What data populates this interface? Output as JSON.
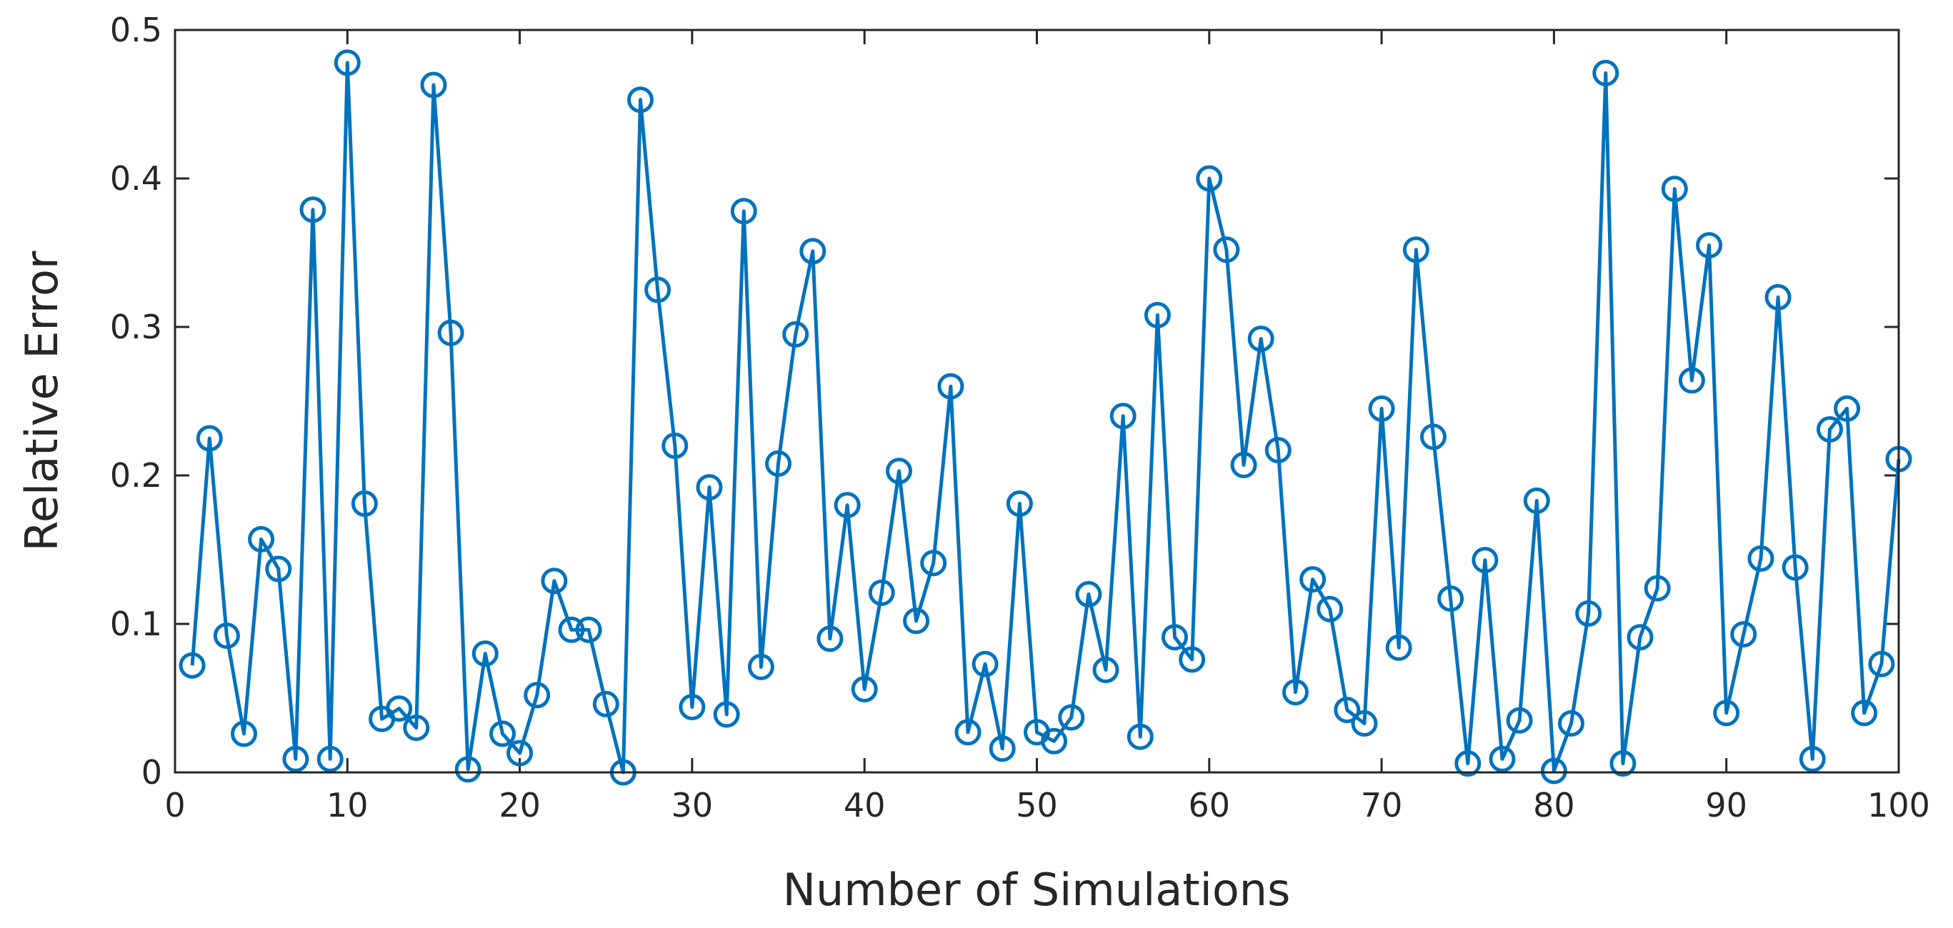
{
  "chart_data": {
    "type": "line",
    "title": "",
    "xlabel": "Number of Simulations",
    "ylabel": "Relative Error",
    "xlim": [
      0,
      100
    ],
    "ylim": [
      0,
      0.5
    ],
    "xticks": [
      0,
      10,
      20,
      30,
      40,
      50,
      60,
      70,
      80,
      90,
      100
    ],
    "xtick_labels": [
      "0",
      "10",
      "20",
      "30",
      "40",
      "50",
      "60",
      "70",
      "80",
      "90",
      "100"
    ],
    "yticks": [
      0,
      0.1,
      0.2,
      0.3,
      0.4,
      0.5
    ],
    "ytick_labels": [
      "0",
      "0.1",
      "0.2",
      "0.3",
      "0.4",
      "0.5"
    ],
    "grid": false,
    "box": true,
    "colors": {
      "series": "#0072BD",
      "axis": "#262626"
    },
    "series": [
      {
        "name": "Relative Error",
        "marker": "circle",
        "x": [
          1,
          2,
          3,
          4,
          5,
          6,
          7,
          8,
          9,
          10,
          11,
          12,
          13,
          14,
          15,
          16,
          17,
          18,
          19,
          20,
          21,
          22,
          23,
          24,
          25,
          26,
          27,
          28,
          29,
          30,
          31,
          32,
          33,
          34,
          35,
          36,
          37,
          38,
          39,
          40,
          41,
          42,
          43,
          44,
          45,
          46,
          47,
          48,
          49,
          50,
          51,
          52,
          53,
          54,
          55,
          56,
          57,
          58,
          59,
          60,
          61,
          62,
          63,
          64,
          65,
          66,
          67,
          68,
          69,
          70,
          71,
          72,
          73,
          74,
          75,
          76,
          77,
          78,
          79,
          80,
          81,
          82,
          83,
          84,
          85,
          86,
          87,
          88,
          89,
          90,
          91,
          92,
          93,
          94,
          95,
          96,
          97,
          98,
          99,
          100
        ],
        "values": [
          0.072,
          0.225,
          0.092,
          0.026,
          0.157,
          0.137,
          0.009,
          0.379,
          0.009,
          0.478,
          0.181,
          0.036,
          0.043,
          0.03,
          0.463,
          0.296,
          0.002,
          0.08,
          0.026,
          0.013,
          0.052,
          0.129,
          0.096,
          0.096,
          0.046,
          0.0,
          0.453,
          0.325,
          0.22,
          0.044,
          0.192,
          0.039,
          0.378,
          0.071,
          0.208,
          0.295,
          0.351,
          0.09,
          0.18,
          0.056,
          0.121,
          0.203,
          0.102,
          0.141,
          0.26,
          0.027,
          0.073,
          0.016,
          0.181,
          0.027,
          0.021,
          0.037,
          0.12,
          0.069,
          0.24,
          0.024,
          0.308,
          0.091,
          0.076,
          0.4,
          0.352,
          0.207,
          0.292,
          0.217,
          0.054,
          0.13,
          0.11,
          0.042,
          0.033,
          0.245,
          0.084,
          0.352,
          0.226,
          0.117,
          0.006,
          0.143,
          0.009,
          0.035,
          0.183,
          0.001,
          0.033,
          0.107,
          0.471,
          0.006,
          0.091,
          0.124,
          0.393,
          0.264,
          0.355,
          0.04,
          0.093,
          0.144,
          0.32,
          0.138,
          0.009,
          0.231,
          0.245,
          0.04,
          0.073,
          0.211
        ]
      }
    ]
  }
}
